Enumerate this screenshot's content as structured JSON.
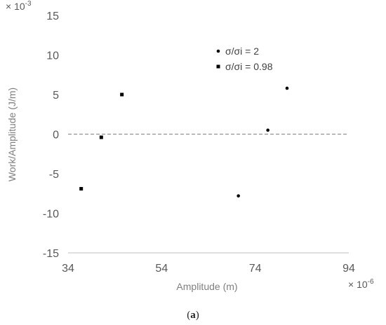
{
  "chart_data": {
    "type": "scatter",
    "xlabel": "Amplitude (m)",
    "ylabel": "Work/Amplitude (J/m)",
    "x_multiplier": "× 10",
    "x_multiplier_exp": "-6",
    "y_multiplier": "× 10",
    "y_multiplier_exp": "-3",
    "xlim": [
      34,
      94
    ],
    "ylim": [
      -15,
      15
    ],
    "x_ticks": [
      "34",
      "54",
      "74",
      "94"
    ],
    "y_ticks": [
      "15",
      "10",
      "5",
      "0",
      "-5",
      "-10",
      "-15"
    ],
    "x_tick_values": [
      34,
      54,
      74,
      94
    ],
    "y_tick_values": [
      15,
      10,
      5,
      0,
      -5,
      -10,
      -15
    ],
    "grid": false,
    "reference_line": {
      "y": 0,
      "style": "dashed",
      "color": "#7f7f7f"
    },
    "legend_position": "top-right-inside",
    "series": [
      {
        "name": "σ/σi = 2",
        "marker": "circle",
        "color": "#000000",
        "x": [
          70.4,
          76.7,
          80.8
        ],
        "y": [
          -7.8,
          0.5,
          5.8
        ]
      },
      {
        "name": "σ/σi = 0.98",
        "marker": "square",
        "color": "#000000",
        "x": [
          36.8,
          41.1,
          45.5
        ],
        "y": [
          -6.9,
          -0.4,
          5.0
        ]
      }
    ]
  },
  "caption_open": "(",
  "caption_letter": "a",
  "caption_close": ")"
}
